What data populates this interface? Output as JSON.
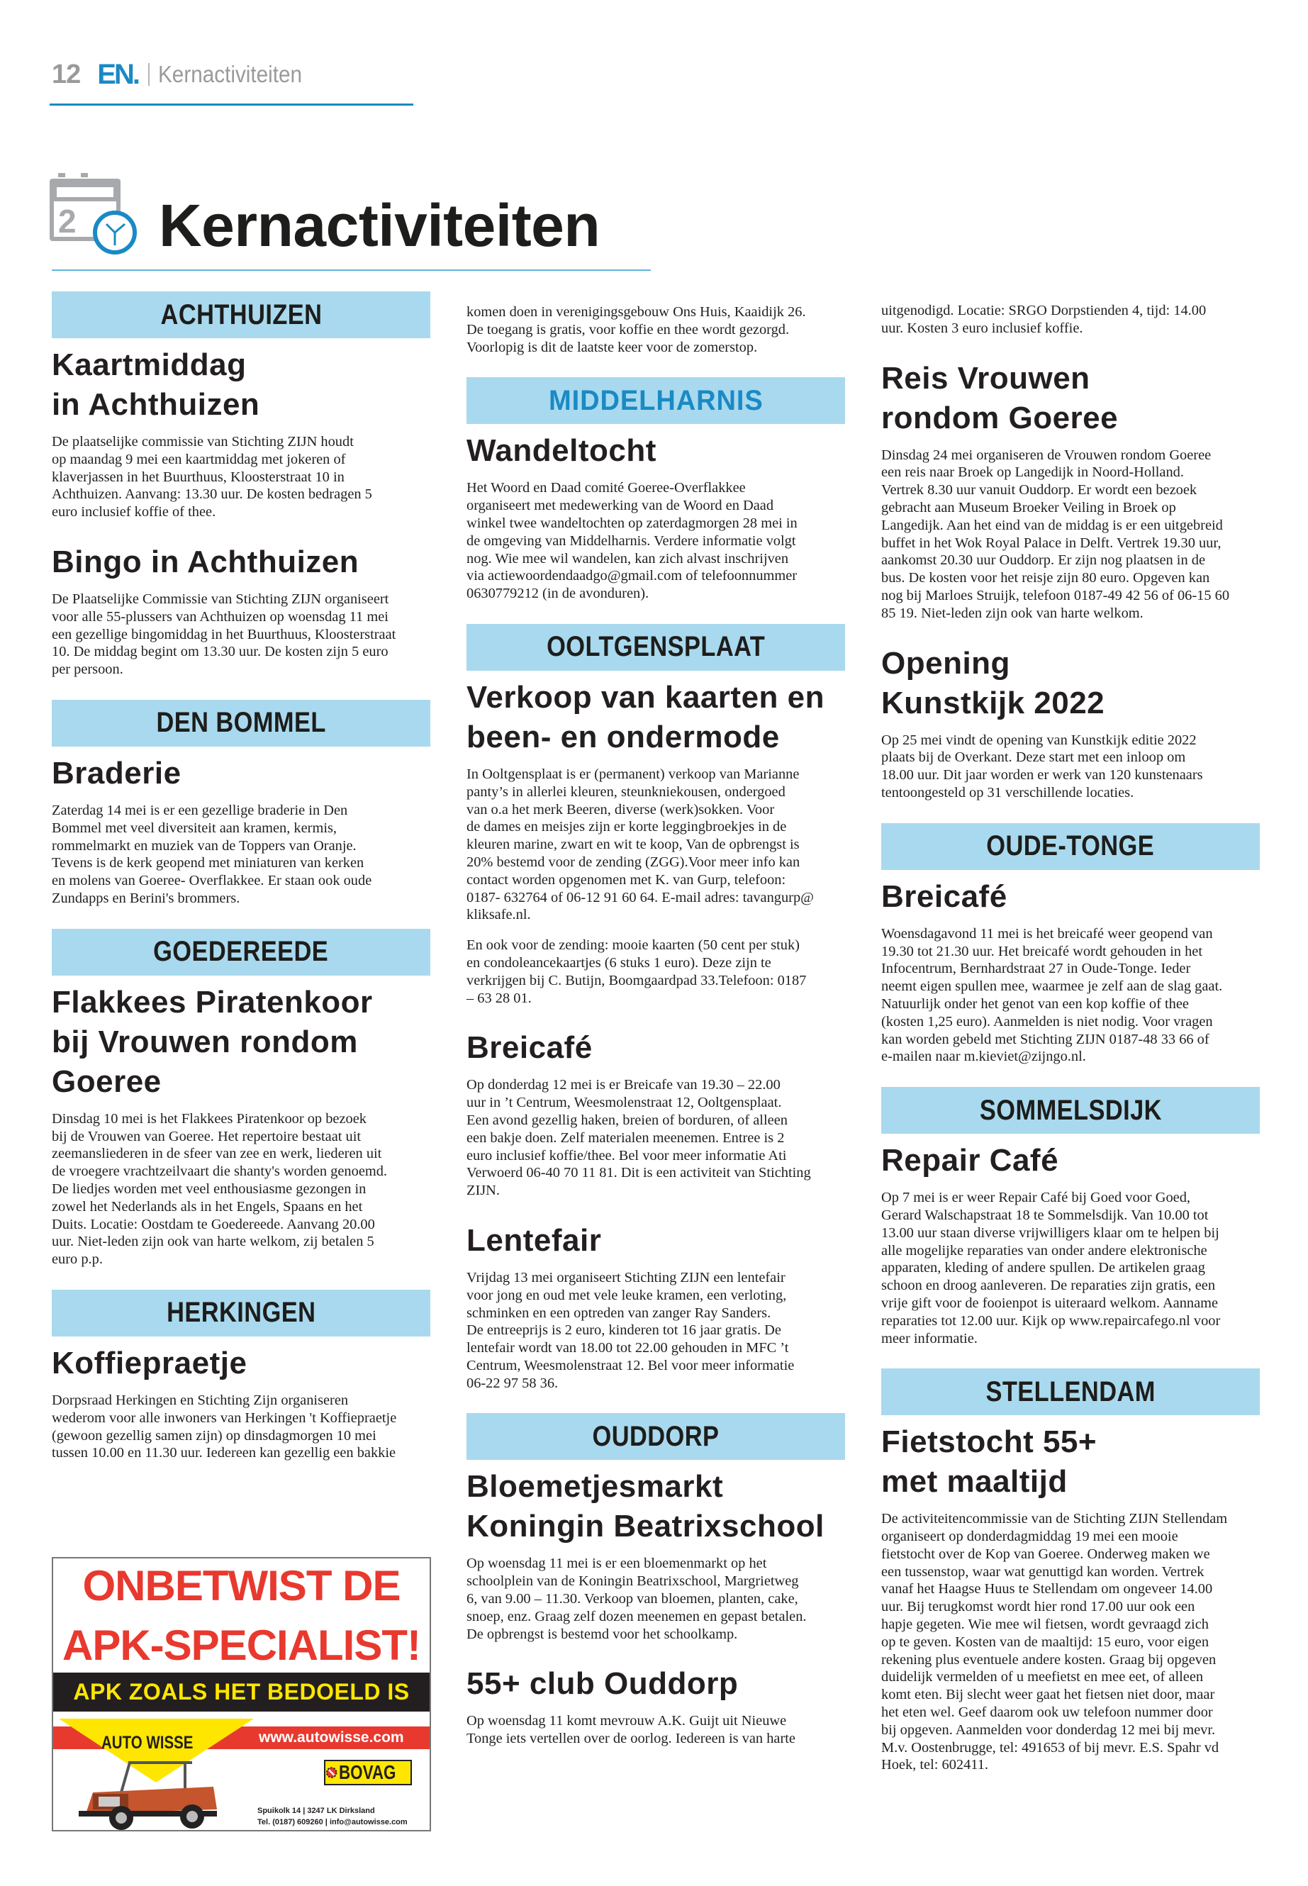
{
  "header": {
    "page_number": "12",
    "logo": "EN.",
    "section": "Kernactiviteiten"
  },
  "page_title": "Kernactiviteiten",
  "title_icon": "calendar-clock-icon",
  "title_icon_day": "2",
  "colors": {
    "accent": "#1a8ac4",
    "bar": "#a9d9ee",
    "ad_red": "#e8392f",
    "ad_yellow": "#ffe600"
  },
  "columns": [
    [
      {
        "type": "bar",
        "text": "ACHTHUIZEN"
      },
      {
        "type": "h",
        "text": "Kaartmiddag\nin Achthuizen"
      },
      {
        "type": "p",
        "text": "De plaatselijke commissie van Stichting ZIJN houdt\nop maandag 9 mei een kaartmiddag met jokeren of\nklaverjassen in het Buurthuus, Kloosterstraat 10 in\nAchthuizen. Aanvang: 13.30 uur. De kosten bedragen 5\neuro inclusief koffie of thee."
      },
      {
        "type": "h",
        "text": "Bingo in Achthuizen"
      },
      {
        "type": "p",
        "text": "De Plaatselijke Commissie van Stichting ZIJN organiseert\nvoor alle 55-plussers van Achthuizen op woensdag 11 mei\neen gezellige bingomiddag in het Buurthuus, Kloosterstraat\n10. De middag begint om 13.30 uur. De kosten zijn 5 euro\nper persoon."
      },
      {
        "type": "bar",
        "text": "DEN BOMMEL"
      },
      {
        "type": "h",
        "text": "Braderie"
      },
      {
        "type": "p",
        "text": "Zaterdag 14 mei is er een gezellige braderie in Den\nBommel met veel diversiteit aan kramen, kermis,\nrommelmarkt en muziek van de Toppers van Oranje.\nTevens is de kerk geopend met miniaturen van kerken\nen molens van Goeree- Overflakkee. Er staan ook oude\nZundapps en Berini's brommers."
      },
      {
        "type": "bar",
        "text": "GOEDEREEDE"
      },
      {
        "type": "h",
        "text": "Flakkees Piratenkoor\nbij Vrouwen rondom\nGoeree"
      },
      {
        "type": "p",
        "text": "Dinsdag 10 mei is het Flakkees Piratenkoor op bezoek\nbij de Vrouwen van Goeree. Het repertoire bestaat uit\nzeemansliederen in de sfeer van zee en werk, liederen uit\nde vroegere vrachtzeilvaart die shanty's worden genoemd.\nDe liedjes worden met veel enthousiasme gezongen in\nzowel het Nederlands als in het Engels, Spaans en het\nDuits. Locatie: Oostdam te Goedereede. Aanvang 20.00\nuur. Niet-leden zijn ook van harte welkom, zij betalen 5\neuro p.p."
      },
      {
        "type": "bar",
        "text": "HERKINGEN"
      },
      {
        "type": "h",
        "text": "Koffiepraetje"
      },
      {
        "type": "p",
        "text": "Dorpsraad Herkingen en Stichting Zijn organiseren\nwederom voor alle inwoners van Herkingen 't Koffiepraetje\n(gewoon gezellig samen zijn) op dinsdagmorgen 10 mei\ntussen 10.00 en 11.30 uur. Iedereen kan gezellig een bakkie"
      }
    ],
    [
      {
        "type": "p",
        "text": "komen doen in verenigingsgebouw Ons Huis, Kaaidijk 26.\nDe toegang is gratis, voor koffie en thee wordt gezorgd.\nVoorlopig is dit de laatste keer voor de zomerstop."
      },
      {
        "type": "bar",
        "text": "MIDDELHARNIS",
        "blue": true
      },
      {
        "type": "h",
        "text": "Wandeltocht"
      },
      {
        "type": "p",
        "text": "Het Woord en Daad comité Goeree-Overflakkee\norganiseert met medewerking van de Woord en Daad\nwinkel twee wandeltochten op zaterdagmorgen 28 mei in\nde omgeving van Middelharnis. Verdere informatie volgt\nnog. Wie mee wil wandelen, kan zich alvast inschrijven\nvia actiewoordendaadgo@gmail.com of telefoonnummer\n0630779212 (in de avonduren)."
      },
      {
        "type": "bar",
        "text": "OOLTGENSPLAAT"
      },
      {
        "type": "h",
        "text": "Verkoop van kaarten en\nbeen- en ondermode"
      },
      {
        "type": "p",
        "tight": true,
        "text": "In Ooltgensplaat is er (permanent) verkoop van Marianne\npanty’s in allerlei kleuren, steunkniekousen, ondergoed\nvan o.a het merk Beeren, diverse (werk)sokken. Voor\nde dames en meisjes zijn er korte leggingbroekjes in de\nkleuren marine, zwart en wit te koop, Van de opbrengst is\n20% bestemd voor de zending (ZGG).Voor meer info kan\ncontact worden opgenomen met K. van Gurp, telefoon:\n0187- 632764 of 06-12 91 60 64. E-mail adres: tavangurp@\nkliksafe.nl."
      },
      {
        "type": "p",
        "text": "En ook voor de zending: mooie kaarten (50 cent per stuk)\nen condoleancekaartjes (6 stuks 1 euro). Deze zijn te\nverkrijgen bij C. Butijn, Boomgaardpad 33.Telefoon: 0187\n– 63 28 01."
      },
      {
        "type": "h",
        "text": "Breicafé"
      },
      {
        "type": "p",
        "text": "Op donderdag 12 mei is er Breicafe van 19.30 – 22.00\nuur in ’t Centrum, Weesmolenstraat 12, Ooltgensplaat.\nEen avond gezellig haken, breien of borduren, of alleen\neen bakje doen. Zelf materialen meenemen. Entree is 2\neuro inclusief koffie/thee. Bel voor meer informatie Ati\nVerwoerd 06-40 70 11 81. Dit is een activiteit van Stichting\nZIJN."
      },
      {
        "type": "h",
        "text": "Lentefair"
      },
      {
        "type": "p",
        "text": "Vrijdag 13 mei organiseert Stichting ZIJN een lentefair\nvoor jong en oud met vele leuke kramen, een verloting,\nschminken en een optreden van zanger Ray Sanders.\nDe entreeprijs is 2 euro, kinderen tot 16 jaar gratis. De\nlentefair wordt van 18.00 tot 22.00 gehouden in MFC ’t\nCentrum, Weesmolenstraat 12. Bel voor meer informatie\n06-22 97 58 36."
      },
      {
        "type": "bar",
        "text": "OUDDORP"
      },
      {
        "type": "h",
        "text": "Bloemetjesmarkt\nKoningin Beatrixschool"
      },
      {
        "type": "p",
        "text": "Op woensdag 11 mei is er een bloemenmarkt op het\nschoolplein van de Koningin Beatrixschool, Margrietweg\n6,  van 9.00 – 11.30. Verkoop van bloemen, planten, cake,\nsnoep, enz. Graag zelf dozen meenemen en gepast betalen.\nDe opbrengst is bestemd voor het schoolkamp."
      },
      {
        "type": "h",
        "text": "55+ club Ouddorp"
      },
      {
        "type": "p",
        "text": "Op woensdag 11 komt mevrouw A.K. Guijt uit Nieuwe\nTonge iets vertellen over de oorlog. Iedereen is van harte"
      }
    ],
    [
      {
        "type": "p",
        "text": "uitgenodigd. Locatie: SRGO Dorpstienden 4, tijd: 14.00\nuur. Kosten 3 euro inclusief koffie."
      },
      {
        "type": "h",
        "text": "Reis Vrouwen\nrondom Goeree"
      },
      {
        "type": "p",
        "text": "Dinsdag 24 mei organiseren de Vrouwen rondom Goeree\neen reis naar Broek op Langedijk in Noord-Holland.\nVertrek 8.30 uur vanuit Ouddorp. Er wordt een bezoek\ngebracht aan Museum Broeker Veiling in Broek op\nLangedijk. Aan het eind van de middag is er een uitgebreid\nbuffet in het Wok Royal Palace in Delft. Vertrek 19.30 uur,\naankomst 20.30 uur Ouddorp. Er zijn nog plaatsen in de\nbus. De kosten voor het reisje zijn 80 euro. Opgeven kan\nnog bij Marloes Struijk, telefoon 0187-49 42 56 of 06-15 60\n85 19. Niet-leden zijn ook van harte welkom."
      },
      {
        "type": "h",
        "text": "Opening\nKunstkijk 2022"
      },
      {
        "type": "p",
        "text": "Op 25 mei vindt de opening van Kunstkijk editie 2022\nplaats bij de Overkant. Deze start met een inloop om\n18.00 uur. Dit jaar worden er werk van 120 kunstenaars\ntentoongesteld op 31 verschillende locaties."
      },
      {
        "type": "bar",
        "text": "OUDE-TONGE"
      },
      {
        "type": "h",
        "text": "Breicafé"
      },
      {
        "type": "p",
        "text": "Woensdagavond 11 mei is het breicafé weer geopend van\n19.30 tot 21.30 uur. Het breicafé wordt gehouden in het\nInfocentrum, Bernhardstraat 27 in Oude-Tonge. Ieder\nneemt eigen spullen mee, waarmee je zelf aan de slag gaat.\nNatuurlijk onder het genot van een kop koffie of thee\n(kosten 1,25 euro). Aanmelden is niet nodig. Voor vragen\nkan worden gebeld met Stichting ZIJN 0187-48 33 66 of\ne-mailen naar m.kieviet@zijngo.nl."
      },
      {
        "type": "bar",
        "text": "SOMMELSDIJK"
      },
      {
        "type": "h",
        "text": "Repair Café"
      },
      {
        "type": "p",
        "text": "Op 7 mei is er weer Repair Café bij Goed voor Goed,\nGerard Walschapstraat 18 te Sommelsdijk. Van 10.00 tot\n13.00 uur staan diverse vrijwilligers klaar om te helpen bij\nalle mogelijke reparaties van onder andere elektronische\napparaten, kleding of andere spullen. De artikelen graag\nschoon en droog aanleveren. De reparaties zijn gratis, een\nvrije gift voor de fooienpot is uiteraard welkom. Aanname\nreparaties tot 12.00 uur. Kijk op www.repaircafego.nl voor\nmeer informatie."
      },
      {
        "type": "bar",
        "text": "STELLENDAM"
      },
      {
        "type": "h",
        "text": "Fietstocht 55+\nmet maaltijd"
      },
      {
        "type": "p",
        "text": "De activiteitencommissie van de Stichting ZIJN Stellendam\norganiseert op donderdagmiddag 19 mei een mooie\nfietstocht over de Kop van Goeree. Onderweg maken we\neen tussenstop, waar wat genuttigd kan worden. Vertrek\nvanaf het Haagse Huus te Stellendam om ongeveer 14.00\nuur. Bij terugkomst wordt hier rond 17.00 uur ook een\nhapje gegeten. Wie mee wil fietsen, wordt gevraagd zich\nop te geven. Kosten van de maaltijd: 15 euro, voor eigen\nrekening plus eventuele andere kosten. Graag bij opgeven\nduidelijk vermelden of u meefietst en mee eet, of alleen\nkomt eten. Bij slecht weer gaat het fietsen niet door, maar\nhet eten wel. Geef daarom ook uw telefoon nummer door\nbij opgeven. Aanmelden voor donderdag 12 mei bij mevr.\nM.v. Oostenbrugge, tel: 491653 of bij mevr. E.S. Spahr vd\nHoek, tel: 602411."
      }
    ]
  ],
  "ad": {
    "headline_1": "ONBETWIST DE",
    "headline_2": "APK-SPECIALIST!",
    "tagline": "APK ZOALS HET BEDOELD IS",
    "brand": "AUTO WISSE",
    "url": "www.autowisse.com",
    "badge": "BOVAG",
    "address": "Spuikolk 14 | 3247 LK Dirksland",
    "contact": "Tel. (0187) 609260 | info@autowisse.com"
  }
}
